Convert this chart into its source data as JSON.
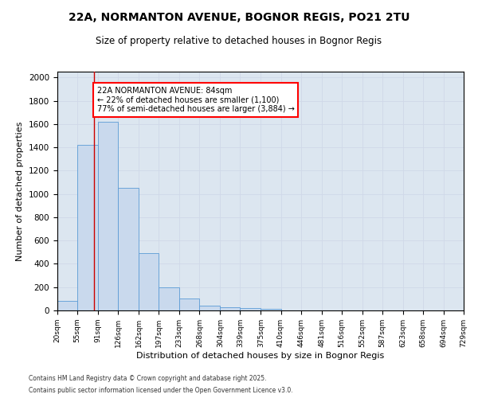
{
  "title": "22A, NORMANTON AVENUE, BOGNOR REGIS, PO21 2TU",
  "subtitle": "Size of property relative to detached houses in Bognor Regis",
  "xlabel": "Distribution of detached houses by size in Bognor Regis",
  "ylabel": "Number of detached properties",
  "bins": [
    "20sqm",
    "55sqm",
    "91sqm",
    "126sqm",
    "162sqm",
    "197sqm",
    "233sqm",
    "268sqm",
    "304sqm",
    "339sqm",
    "375sqm",
    "410sqm",
    "446sqm",
    "481sqm",
    "516sqm",
    "552sqm",
    "587sqm",
    "623sqm",
    "658sqm",
    "694sqm",
    "729sqm"
  ],
  "bin_edges": [
    20,
    55,
    91,
    126,
    162,
    197,
    233,
    268,
    304,
    339,
    375,
    410,
    446,
    481,
    516,
    552,
    587,
    623,
    658,
    694,
    729
  ],
  "bar_heights": [
    80,
    1420,
    1620,
    1055,
    490,
    200,
    100,
    40,
    30,
    20,
    15,
    0,
    0,
    0,
    0,
    0,
    0,
    0,
    0,
    0
  ],
  "bar_color": "#c9d9ed",
  "bar_edge_color": "#5b9bd5",
  "grid_color": "#d0d8e8",
  "bg_color": "#dce6f0",
  "vline_x": 84,
  "vline_color": "#cc0000",
  "annotation_text": "22A NORMANTON AVENUE: 84sqm\n← 22% of detached houses are smaller (1,100)\n77% of semi-detached houses are larger (3,884) →",
  "annotation_box_color": "red",
  "ylim": [
    0,
    2050
  ],
  "yticks": [
    0,
    200,
    400,
    600,
    800,
    1000,
    1200,
    1400,
    1600,
    1800,
    2000
  ],
  "footer_line1": "Contains HM Land Registry data © Crown copyright and database right 2025.",
  "footer_line2": "Contains public sector information licensed under the Open Government Licence v3.0."
}
